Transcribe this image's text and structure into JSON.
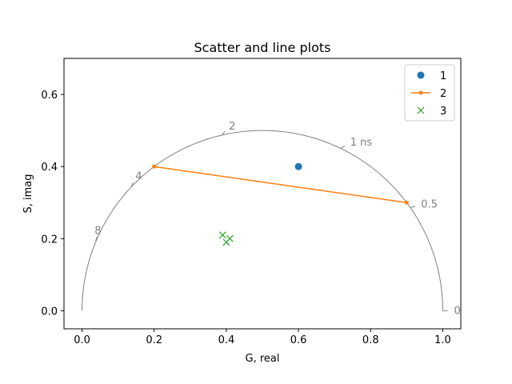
{
  "chart_data": {
    "type": "scatter",
    "title": "Scatter and line plots",
    "xlabel": "G, real",
    "ylabel": "S, imag",
    "xlim": [
      -0.05,
      1.05
    ],
    "ylim": [
      -0.05,
      0.7
    ],
    "xticks": [
      0.0,
      0.2,
      0.4,
      0.6,
      0.8,
      1.0
    ],
    "xtick_labels": [
      "0.0",
      "0.2",
      "0.4",
      "0.6",
      "0.8",
      "1.0"
    ],
    "yticks": [
      0.0,
      0.2,
      0.4,
      0.6
    ],
    "ytick_labels": [
      "0.0",
      "0.2",
      "0.4",
      "0.6"
    ],
    "grid": false,
    "legend_position": "top-right",
    "colors": {
      "series1": "#1f77b4",
      "series2": "#ff7f0e",
      "series3": "#2ca02c",
      "semicircle": "#808080"
    },
    "semicircle": {
      "center": [
        0.5,
        0.0
      ],
      "radius": 0.5,
      "lifetime_ticks": [
        {
          "label": "0",
          "phase_deg": 0
        },
        {
          "label": "0.5",
          "phase_deg": 17.44
        },
        {
          "label": "1 ns",
          "phase_deg": 32.14
        },
        {
          "label": "2",
          "phase_deg": 51.49
        },
        {
          "label": "4",
          "phase_deg": 68.32
        },
        {
          "label": "8",
          "phase_deg": 78.75
        }
      ]
    },
    "series": [
      {
        "name": "1",
        "marker": "circle",
        "line": false,
        "points": [
          [
            0.6,
            0.4
          ]
        ]
      },
      {
        "name": "2",
        "marker": "dot",
        "line": true,
        "points": [
          [
            0.2,
            0.4
          ],
          [
            0.9,
            0.3
          ]
        ]
      },
      {
        "name": "3",
        "marker": "x",
        "line": false,
        "points": [
          [
            0.39,
            0.21
          ],
          [
            0.4,
            0.19
          ],
          [
            0.41,
            0.2
          ]
        ]
      }
    ]
  }
}
